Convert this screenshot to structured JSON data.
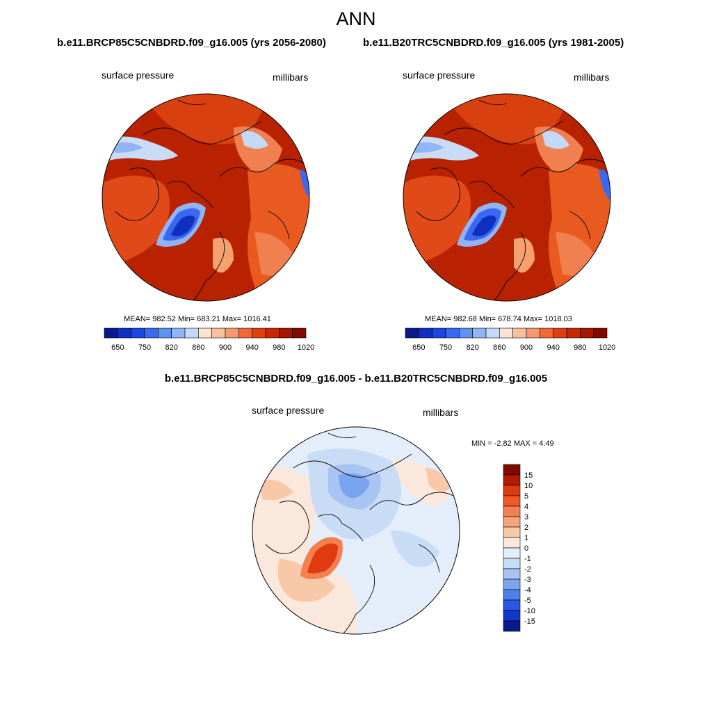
{
  "figure": {
    "title": "ANN"
  },
  "panels": [
    {
      "id": "left",
      "title": "b.e11.BRCP85C5CNBDRD.f09_g16.005 (yrs 2056-2080)",
      "variable": "surface pressure",
      "units": "millibars",
      "stats": "MEAN= 982.52  Min= 683.21  Max= 1016.41"
    },
    {
      "id": "right",
      "title": "b.e11.B20TRC5CNBDRD.f09_g16.005 (yrs 1981-2005)",
      "variable": "surface pressure",
      "units": "millibars",
      "stats": "MEAN= 982.68  Min= 678.74  Max= 1018.03"
    },
    {
      "id": "diff",
      "title": "b.e11.BRCP85C5CNBDRD.f09_g16.005 - b.e11.B20TRC5CNBDRD.f09_g16.005",
      "variable": "surface pressure",
      "units": "millibars",
      "stats": "MIN =  -2.82 MAX =   4.49"
    }
  ],
  "colorbar_abs": {
    "orientation": "horizontal",
    "colors": [
      "#0a1a8a",
      "#1030c0",
      "#1a48e0",
      "#3a68f0",
      "#6090f0",
      "#90b4f4",
      "#c4d8f8",
      "#fbe4d4",
      "#f8c0a0",
      "#f59870",
      "#f06838",
      "#e04010",
      "#c82800",
      "#a01800",
      "#800a00"
    ],
    "labels": [
      "650",
      "750",
      "820",
      "860",
      "900",
      "940",
      "980",
      "1020"
    ]
  },
  "colorbar_diff": {
    "orientation": "vertical",
    "colors": [
      "#800a00",
      "#b01c00",
      "#e03a10",
      "#f05828",
      "#f48050",
      "#f6a47c",
      "#f8c8a8",
      "#fbe8dc",
      "#e4eefa",
      "#c8dcf6",
      "#a8c4f2",
      "#7aa4ee",
      "#4c80ea",
      "#2858e0",
      "#1038c8",
      "#0a1a8a"
    ],
    "labels": [
      "15",
      "10",
      "5",
      "4",
      "3",
      "2",
      "1",
      "0",
      "-1",
      "-2",
      "-3",
      "-4",
      "-5",
      "-10",
      "-15"
    ]
  }
}
